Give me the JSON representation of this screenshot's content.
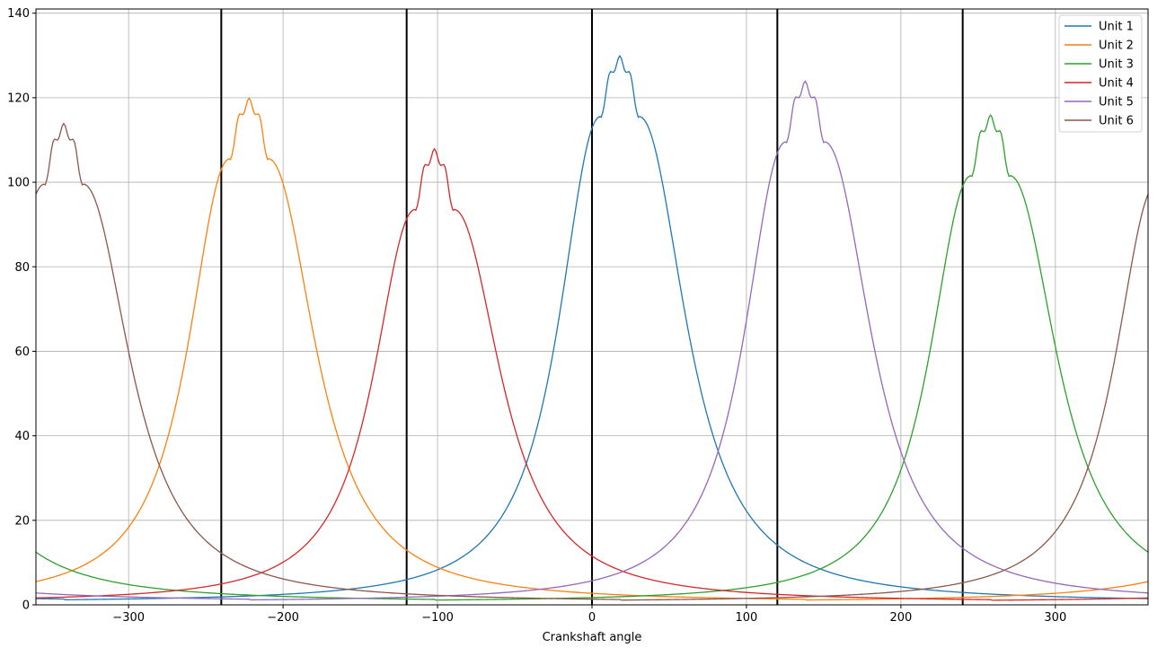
{
  "chart_data": {
    "type": "line",
    "title": "",
    "xlabel": "Crankshaft angle",
    "ylabel": "",
    "xlim": [
      -360,
      360
    ],
    "ylim": [
      0,
      141
    ],
    "xticks": [
      -300,
      -200,
      -100,
      0,
      100,
      200,
      300
    ],
    "yticks": [
      0,
      20,
      40,
      60,
      80,
      100,
      120,
      140
    ],
    "grid": true,
    "legend_position": "top-right",
    "vertical_lines": [
      -240,
      -120,
      0,
      120,
      240
    ],
    "vertical_line_color": "#000000",
    "series": [
      {
        "name": "Unit 1",
        "color": "#1f77b4",
        "peak": 18,
        "base_peak": 128
      },
      {
        "name": "Unit 2",
        "color": "#ff7f0e",
        "peak": -222,
        "base_peak": 118
      },
      {
        "name": "Unit 3",
        "color": "#2ca02c",
        "peak": 258,
        "base_peak": 114
      },
      {
        "name": "Unit 4",
        "color": "#d62728",
        "peak": -102,
        "base_peak": 106
      },
      {
        "name": "Unit 5",
        "color": "#9467bd",
        "peak": 138,
        "base_peak": 122
      },
      {
        "name": "Unit 6",
        "color": "#8c564b",
        "peak": -342,
        "base_peak": 112
      }
    ]
  }
}
